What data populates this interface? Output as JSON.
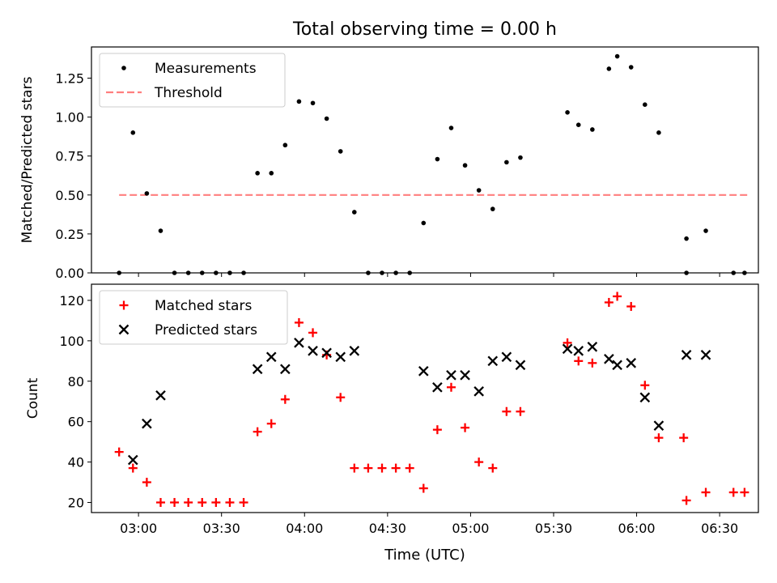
{
  "title": "Total observing time = 0.00 h",
  "xlabel": "Time (UTC)",
  "x_ticks": [
    "03:00",
    "03:30",
    "04:00",
    "04:30",
    "05:00",
    "05:30",
    "06:00",
    "06:30"
  ],
  "colors": {
    "matched": "#ff0000",
    "predicted": "#000000",
    "threshold": "#ff7f7f",
    "measurement": "#000000"
  },
  "chart_data": [
    {
      "type": "scatter",
      "ylabel": "Matched/Predicted stars",
      "ylim": [
        0,
        1.45
      ],
      "y_ticks": [
        "0.00",
        "0.25",
        "0.50",
        "0.75",
        "1.00",
        "1.25"
      ],
      "legend": [
        "Measurements",
        "Threshold"
      ],
      "legend_position": "top-left",
      "threshold": {
        "value": 0.5,
        "x_range": [
          "02:53",
          "06:40"
        ]
      },
      "series": [
        {
          "name": "Measurements",
          "points": [
            [
              "02:53",
              0.0
            ],
            [
              "02:58",
              0.9
            ],
            [
              "03:03",
              0.51
            ],
            [
              "03:08",
              0.27
            ],
            [
              "03:13",
              0.0
            ],
            [
              "03:18",
              0.0
            ],
            [
              "03:23",
              0.0
            ],
            [
              "03:28",
              0.0
            ],
            [
              "03:33",
              0.0
            ],
            [
              "03:38",
              0.0
            ],
            [
              "03:43",
              0.64
            ],
            [
              "03:48",
              0.64
            ],
            [
              "03:53",
              0.82
            ],
            [
              "03:58",
              1.1
            ],
            [
              "04:03",
              1.09
            ],
            [
              "04:08",
              0.99
            ],
            [
              "04:13",
              0.78
            ],
            [
              "04:18",
              0.39
            ],
            [
              "04:23",
              0.0
            ],
            [
              "04:28",
              0.0
            ],
            [
              "04:33",
              0.0
            ],
            [
              "04:38",
              0.0
            ],
            [
              "04:43",
              0.32
            ],
            [
              "04:48",
              0.73
            ],
            [
              "04:53",
              0.93
            ],
            [
              "04:58",
              0.69
            ],
            [
              "05:03",
              0.53
            ],
            [
              "05:08",
              0.41
            ],
            [
              "05:13",
              0.71
            ],
            [
              "05:18",
              0.74
            ],
            [
              "05:35",
              1.03
            ],
            [
              "05:39",
              0.95
            ],
            [
              "05:44",
              0.92
            ],
            [
              "05:50",
              1.31
            ],
            [
              "05:53",
              1.39
            ],
            [
              "05:58",
              1.32
            ],
            [
              "06:03",
              1.08
            ],
            [
              "06:08",
              0.9
            ],
            [
              "06:18",
              0.0
            ],
            [
              "06:18",
              0.22
            ],
            [
              "06:25",
              0.27
            ],
            [
              "06:35",
              0.0
            ],
            [
              "06:39",
              0.0
            ]
          ]
        }
      ]
    },
    {
      "type": "scatter",
      "ylabel": "Count",
      "ylim": [
        15,
        128
      ],
      "y_ticks": [
        "20",
        "40",
        "60",
        "80",
        "100",
        "120"
      ],
      "legend": [
        "Matched stars",
        "Predicted stars"
      ],
      "legend_position": "top-left",
      "series": [
        {
          "name": "Matched stars",
          "marker": "+",
          "points": [
            [
              "02:53",
              45
            ],
            [
              "02:58",
              37
            ],
            [
              "03:03",
              30
            ],
            [
              "03:08",
              20
            ],
            [
              "03:13",
              20
            ],
            [
              "03:18",
              20
            ],
            [
              "03:23",
              20
            ],
            [
              "03:28",
              20
            ],
            [
              "03:33",
              20
            ],
            [
              "03:38",
              20
            ],
            [
              "03:43",
              55
            ],
            [
              "03:48",
              59
            ],
            [
              "03:53",
              71
            ],
            [
              "03:58",
              109
            ],
            [
              "04:03",
              104
            ],
            [
              "04:08",
              93
            ],
            [
              "04:13",
              72
            ],
            [
              "04:18",
              37
            ],
            [
              "04:23",
              37
            ],
            [
              "04:28",
              37
            ],
            [
              "04:33",
              37
            ],
            [
              "04:38",
              37
            ],
            [
              "04:43",
              27
            ],
            [
              "04:48",
              56
            ],
            [
              "04:53",
              77
            ],
            [
              "04:58",
              57
            ],
            [
              "05:03",
              40
            ],
            [
              "05:08",
              37
            ],
            [
              "05:13",
              65
            ],
            [
              "05:18",
              65
            ],
            [
              "05:35",
              99
            ],
            [
              "05:39",
              90
            ],
            [
              "05:44",
              89
            ],
            [
              "05:50",
              119
            ],
            [
              "05:53",
              122
            ],
            [
              "05:58",
              117
            ],
            [
              "06:03",
              78
            ],
            [
              "06:08",
              52
            ],
            [
              "06:17",
              52
            ],
            [
              "06:18",
              21
            ],
            [
              "06:25",
              25
            ],
            [
              "06:35",
              25
            ],
            [
              "06:39",
              25
            ]
          ]
        },
        {
          "name": "Predicted stars",
          "marker": "x",
          "points": [
            [
              "02:58",
              41
            ],
            [
              "03:03",
              59
            ],
            [
              "03:08",
              73
            ],
            [
              "03:43",
              86
            ],
            [
              "03:48",
              92
            ],
            [
              "03:53",
              86
            ],
            [
              "03:58",
              99
            ],
            [
              "04:03",
              95
            ],
            [
              "04:08",
              94
            ],
            [
              "04:13",
              92
            ],
            [
              "04:18",
              95
            ],
            [
              "04:43",
              85
            ],
            [
              "04:48",
              77
            ],
            [
              "04:53",
              83
            ],
            [
              "04:58",
              83
            ],
            [
              "05:03",
              75
            ],
            [
              "05:08",
              90
            ],
            [
              "05:13",
              92
            ],
            [
              "05:18",
              88
            ],
            [
              "05:35",
              96
            ],
            [
              "05:39",
              95
            ],
            [
              "05:44",
              97
            ],
            [
              "05:50",
              91
            ],
            [
              "05:53",
              88
            ],
            [
              "05:58",
              89
            ],
            [
              "06:03",
              72
            ],
            [
              "06:08",
              58
            ],
            [
              "06:18",
              93
            ],
            [
              "06:25",
              93
            ]
          ]
        }
      ]
    }
  ]
}
